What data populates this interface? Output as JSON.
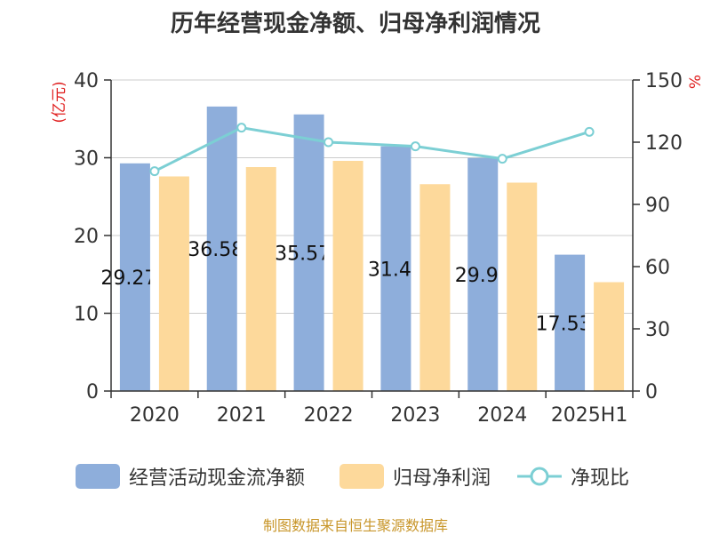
{
  "chart_data": {
    "type": "bar",
    "title": "历年经营现金净额、归母净利润情况",
    "categories": [
      "2020",
      "2021",
      "2022",
      "2023",
      "2024",
      "2025H1"
    ],
    "y_left_label": "(亿元)",
    "y_left_ticks": [
      "40",
      "30",
      "20",
      "10",
      "0"
    ],
    "y_left_range": [
      0,
      40
    ],
    "y_right_label": "%",
    "y_right_ticks": [
      "150",
      "120",
      "90",
      "60",
      "30",
      "0"
    ],
    "y_right_range": [
      0,
      150
    ],
    "grid": true,
    "series": [
      {
        "name": "经营活动现金流净额",
        "type": "bar",
        "axis": "left",
        "color": "#8eaedb",
        "values": [
          29.279,
          36.587,
          35.572,
          31.47,
          29.98,
          17.533
        ],
        "data_labels": [
          "29.279",
          "36.587",
          "35.572",
          "31.47",
          "29.98",
          "17.533"
        ]
      },
      {
        "name": "归母净利润",
        "type": "bar",
        "axis": "left",
        "color": "#fdd99b",
        "values": [
          27.6,
          28.8,
          29.6,
          26.6,
          26.8,
          14.0
        ]
      },
      {
        "name": "净现比",
        "type": "line",
        "axis": "right",
        "color": "#7ccfd4",
        "values": [
          106,
          127,
          120,
          118,
          112,
          125
        ]
      }
    ],
    "legend_position": "bottom"
  },
  "source_note": "制图数据来自恒生聚源数据库"
}
